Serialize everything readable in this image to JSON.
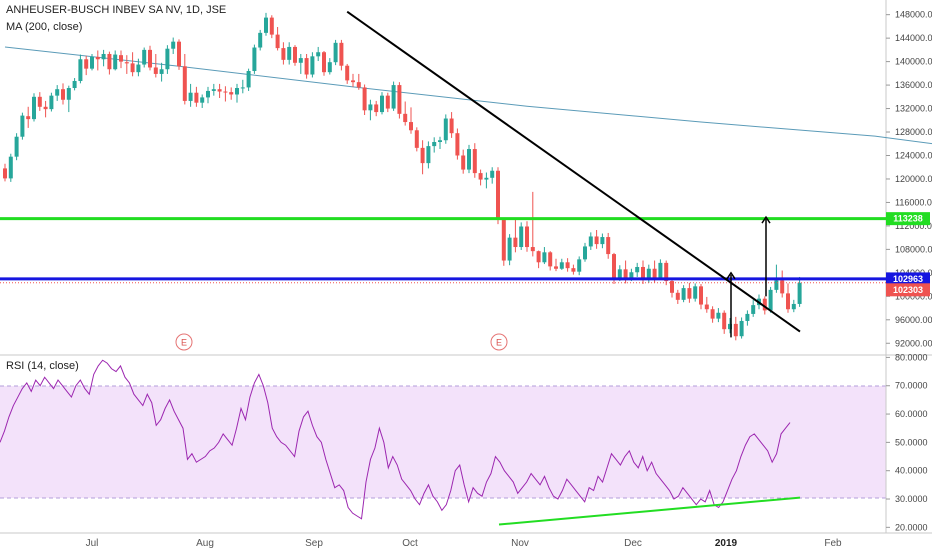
{
  "header": {
    "title": "ANHEUSER-BUSCH INBEV SA NV, 1D, JSE",
    "ma_label": "MA (200, close)"
  },
  "rsi_panel": {
    "label": "RSI (14, close)"
  },
  "colors": {
    "up": "#26a69a",
    "down": "#ef5350",
    "ma": "#5b9bb8",
    "rsi_line": "#9c27b0",
    "rsi_band": "#f3e2fa",
    "green_line": "#22dd22",
    "blue_line": "#1616e0",
    "price_badge": "#ef5350",
    "trend_line": "#000000"
  },
  "earnings_markers": [
    {
      "label": "E",
      "date": "Aug"
    },
    {
      "label": "E",
      "date": "Oct-Nov"
    }
  ],
  "chart_data": [
    {
      "type": "candlestick",
      "title": "ANHEUSER-BUSCH INBEV SA NV, 1D, JSE",
      "x_ticks": [
        "Jul",
        "Aug",
        "Sep",
        "Oct",
        "Nov",
        "Dec",
        "2019",
        "Feb"
      ],
      "y_ticks": [
        92000,
        96000,
        100000,
        104000,
        108000,
        112000,
        116000,
        120000,
        124000,
        128000,
        132000,
        136000,
        140000,
        144000,
        148000
      ],
      "ylim": [
        90000,
        150500
      ],
      "horizontal_levels": [
        {
          "name": "113238",
          "value": 113238,
          "color": "#22dd22"
        },
        {
          "name": "102963",
          "value": 102963,
          "color": "#1616e0"
        }
      ],
      "last_price": {
        "label": "102303",
        "value": 102303
      },
      "series": [
        {
          "name": "MA (200, close)",
          "x": [
            0,
            30,
            60,
            90,
            120,
            150,
            170,
            189
          ],
          "y": [
            142500,
            139200,
            135700,
            132400,
            129700,
            127300,
            124700,
            122300
          ]
        }
      ],
      "trendlines": [
        {
          "from": [
            59,
            148500
          ],
          "to": [
            190,
            94000
          ]
        }
      ],
      "arrows": [
        {
          "x": 173,
          "from": 93000,
          "to": 104000
        },
        {
          "x": 181,
          "from": 100000,
          "to": 113500
        }
      ],
      "candles": [
        [
          121800,
          122600,
          119600,
          120100
        ],
        [
          120100,
          124300,
          119500,
          123800
        ],
        [
          123800,
          127800,
          123200,
          127200
        ],
        [
          127200,
          131300,
          126700,
          130800
        ],
        [
          130700,
          132300,
          128700,
          130200
        ],
        [
          130200,
          134600,
          129800,
          134000
        ],
        [
          134000,
          134800,
          131600,
          132300
        ],
        [
          132300,
          133300,
          130500,
          131900
        ],
        [
          131900,
          134700,
          131500,
          134200
        ],
        [
          134200,
          136000,
          133300,
          135300
        ],
        [
          135300,
          136300,
          132700,
          133500
        ],
        [
          133500,
          135900,
          131400,
          135500
        ],
        [
          135500,
          137200,
          135100,
          136700
        ],
        [
          136700,
          141200,
          136300,
          140400
        ],
        [
          140400,
          141000,
          137700,
          138800
        ],
        [
          138800,
          141300,
          138500,
          140800
        ],
        [
          140800,
          141900,
          138500,
          140400
        ],
        [
          140400,
          142000,
          139200,
          141300
        ],
        [
          141300,
          141700,
          137800,
          138700
        ],
        [
          138700,
          141900,
          138500,
          141200
        ],
        [
          141100,
          141900,
          138900,
          140000
        ],
        [
          139900,
          141100,
          137900,
          139700
        ],
        [
          139700,
          141600,
          137500,
          138200
        ],
        [
          138200,
          140500,
          137500,
          139500
        ],
        [
          139500,
          142400,
          139000,
          142000
        ],
        [
          142000,
          142700,
          138500,
          139000
        ],
        [
          139000,
          141300,
          137300,
          137900
        ],
        [
          137900,
          139800,
          136600,
          138700
        ],
        [
          138700,
          142800,
          137900,
          142200
        ],
        [
          142200,
          144100,
          141300,
          143400
        ],
        [
          143400,
          143800,
          138600,
          139200
        ],
        [
          139200,
          141300,
          132700,
          133300
        ],
        [
          133300,
          136200,
          132300,
          134700
        ],
        [
          134700,
          135700,
          132300,
          133000
        ],
        [
          133000,
          134400,
          132100,
          133900
        ],
        [
          133900,
          135700,
          132900,
          135000
        ],
        [
          135000,
          136200,
          134200,
          135300
        ],
        [
          135300,
          136200,
          133800,
          134900
        ],
        [
          134900,
          135800,
          133200,
          134800
        ],
        [
          134800,
          135600,
          133500,
          134400
        ],
        [
          134400,
          136200,
          133000,
          135500
        ],
        [
          135500,
          136900,
          134600,
          135600
        ],
        [
          135600,
          138800,
          135000,
          138400
        ],
        [
          138400,
          142900,
          137900,
          142400
        ],
        [
          142400,
          145400,
          141900,
          144900
        ],
        [
          144900,
          148300,
          144400,
          147500
        ],
        [
          147500,
          147900,
          144000,
          144600
        ],
        [
          144600,
          145900,
          141900,
          142300
        ],
        [
          142300,
          143300,
          139500,
          140300
        ],
        [
          140300,
          143300,
          139500,
          142500
        ],
        [
          142500,
          142800,
          139300,
          139800
        ],
        [
          139800,
          141300,
          137900,
          140600
        ],
        [
          140600,
          141300,
          137100,
          137800
        ],
        [
          137800,
          141600,
          137300,
          140900
        ],
        [
          140900,
          142500,
          140100,
          141600
        ],
        [
          141600,
          141800,
          137600,
          138200
        ],
        [
          138200,
          140600,
          137800,
          139900
        ],
        [
          139900,
          143700,
          139400,
          143200
        ],
        [
          143200,
          143700,
          138500,
          139300
        ],
        [
          139300,
          139600,
          136200,
          136800
        ],
        [
          136800,
          137900,
          135700,
          136500
        ],
        [
          136500,
          137900,
          135200,
          135600
        ],
        [
          135600,
          136100,
          130900,
          131700
        ],
        [
          131700,
          133500,
          130000,
          132700
        ],
        [
          132700,
          133300,
          130700,
          131400
        ],
        [
          131400,
          134800,
          131000,
          134200
        ],
        [
          134200,
          134700,
          131400,
          132000
        ],
        [
          132000,
          136600,
          131600,
          136000
        ],
        [
          136000,
          136500,
          130300,
          131100
        ],
        [
          131100,
          133200,
          129100,
          129700
        ],
        [
          129700,
          132200,
          127700,
          128300
        ],
        [
          128300,
          128800,
          124700,
          125300
        ],
        [
          125300,
          126600,
          120800,
          122700
        ],
        [
          122700,
          126400,
          121800,
          125600
        ],
        [
          125600,
          127100,
          124500,
          126300
        ],
        [
          126300,
          127200,
          125100,
          126600
        ],
        [
          126600,
          131000,
          126000,
          130300
        ],
        [
          130300,
          131400,
          127000,
          127800
        ],
        [
          127800,
          128600,
          123300,
          124000
        ],
        [
          124000,
          125000,
          120900,
          121600
        ],
        [
          121600,
          125800,
          121000,
          125100
        ],
        [
          125100,
          126100,
          120200,
          121000
        ],
        [
          121000,
          121600,
          118900,
          119900
        ],
        [
          119900,
          121100,
          118400,
          120200
        ],
        [
          120200,
          122000,
          119200,
          121400
        ],
        [
          121400,
          122000,
          112300,
          113100
        ],
        [
          113100,
          113300,
          105200,
          106100
        ],
        [
          106100,
          110600,
          105300,
          110000
        ],
        [
          110000,
          113100,
          107500,
          108400
        ],
        [
          108400,
          112600,
          107900,
          111900
        ],
        [
          111900,
          112800,
          107600,
          108400
        ],
        [
          108400,
          117800,
          106800,
          107700
        ],
        [
          107700,
          107800,
          104800,
          105800
        ],
        [
          105800,
          108400,
          105500,
          107500
        ],
        [
          107500,
          107700,
          104400,
          105100
        ],
        [
          105100,
          106400,
          104300,
          104700
        ],
        [
          104700,
          106400,
          104500,
          105800
        ],
        [
          105800,
          106500,
          104200,
          104800
        ],
        [
          104800,
          105400,
          103700,
          104200
        ],
        [
          104200,
          106800,
          103600,
          106300
        ],
        [
          106300,
          109100,
          105900,
          108500
        ],
        [
          108500,
          110900,
          107900,
          110200
        ],
        [
          110200,
          111300,
          108100,
          108900
        ],
        [
          108900,
          110700,
          108200,
          110100
        ],
        [
          110100,
          110800,
          106400,
          107200
        ],
        [
          107200,
          107400,
          102100,
          102900
        ],
        [
          102900,
          105300,
          102600,
          104600
        ],
        [
          104600,
          106100,
          102200,
          103000
        ],
        [
          103000,
          104700,
          102600,
          104100
        ],
        [
          104100,
          105700,
          103300,
          105000
        ],
        [
          105000,
          106100,
          102100,
          102800
        ],
        [
          102800,
          105400,
          102300,
          104700
        ],
        [
          104700,
          106100,
          102300,
          103200
        ],
        [
          103200,
          106300,
          102800,
          105700
        ],
        [
          105700,
          106100,
          101900,
          102600
        ],
        [
          102600,
          103000,
          99800,
          100600
        ],
        [
          100600,
          101100,
          98700,
          99400
        ],
        [
          99400,
          101900,
          99000,
          101400
        ],
        [
          101400,
          102300,
          98900,
          99600
        ],
        [
          99600,
          102200,
          99100,
          101700
        ],
        [
          101700,
          102100,
          97800,
          98600
        ],
        [
          98600,
          99900,
          97200,
          97800
        ],
        [
          97800,
          98300,
          95500,
          96200
        ],
        [
          96200,
          98000,
          95600,
          97200
        ],
        [
          97200,
          97600,
          93600,
          94400
        ],
        [
          94400,
          96300,
          93700,
          95300
        ],
        [
          95300,
          96500,
          92500,
          93200
        ],
        [
          93200,
          96400,
          92800,
          95800
        ],
        [
          95800,
          97600,
          95000,
          97000
        ],
        [
          97000,
          99400,
          96500,
          98500
        ],
        [
          98500,
          100300,
          97800,
          99600
        ],
        [
          99600,
          100000,
          96900,
          97600
        ],
        [
          97600,
          101600,
          97200,
          101100
        ],
        [
          101100,
          105400,
          100600,
          102700
        ],
        [
          102700,
          104400,
          99800,
          100500
        ],
        [
          100500,
          102200,
          97200,
          97800
        ],
        [
          97800,
          99400,
          97300,
          98700
        ],
        [
          98700,
          103300,
          98200,
          102300
        ]
      ],
      "rsi": {
        "name": "RSI (14, close)",
        "y_ticks": [
          20,
          30,
          40,
          50,
          60,
          70,
          80
        ],
        "ylim": [
          18,
          80.5
        ],
        "band": [
          30,
          70
        ],
        "values": [
          50,
          54,
          59,
          63,
          66,
          69,
          71,
          68,
          72,
          70,
          73,
          71,
          69,
          72,
          70,
          68,
          66,
          70,
          72,
          69,
          67,
          74,
          77,
          79,
          78,
          76,
          75,
          77,
          73,
          71,
          67,
          65,
          63,
          67,
          64,
          56,
          58,
          62,
          65,
          61,
          58,
          55,
          44,
          46,
          43,
          44,
          45,
          47,
          48,
          50,
          53,
          51,
          49,
          55,
          62,
          58,
          66,
          71,
          74,
          70,
          64,
          55,
          52,
          50,
          49,
          47,
          45,
          54,
          59,
          61,
          56,
          52,
          50,
          44,
          39,
          34,
          35,
          33,
          27,
          25,
          24,
          23,
          36,
          44,
          48,
          55,
          50,
          41,
          45,
          42,
          37,
          35,
          33,
          30,
          28,
          32,
          35,
          31,
          29,
          26,
          28,
          33,
          40,
          42,
          35,
          29,
          34,
          32,
          31,
          36,
          39,
          45,
          43,
          40,
          38,
          36,
          32,
          34,
          36,
          39,
          37,
          35,
          38,
          34,
          31,
          30,
          33,
          37,
          35,
          33,
          31,
          29,
          34,
          33,
          38,
          36,
          41,
          46,
          44,
          42,
          45,
          47,
          43,
          41,
          45,
          40,
          43,
          39,
          37,
          35,
          33,
          30,
          31,
          34,
          32,
          30,
          28,
          30,
          29,
          33,
          28,
          27,
          29,
          33,
          37,
          40,
          45,
          49,
          52,
          53,
          51,
          49,
          47,
          43,
          46,
          53,
          55,
          57
        ]
      },
      "rsi_trendline": {
        "from": [
          21,
          499
        ],
        "to": [
          30.5,
          800
        ]
      }
    }
  ]
}
